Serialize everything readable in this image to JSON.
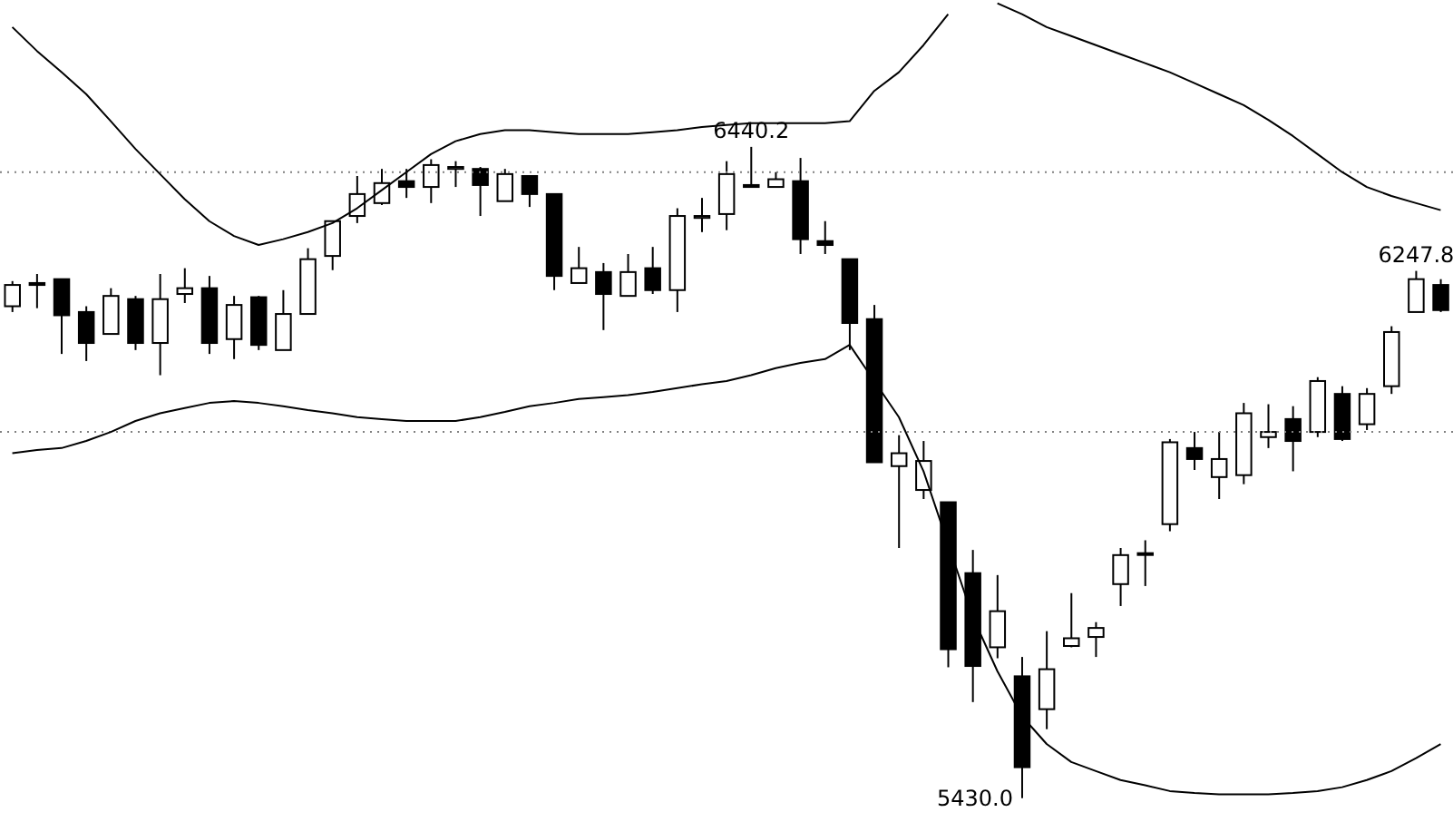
{
  "chart_data": {
    "type": "candlestick",
    "categories": [
      null,
      null,
      null,
      null,
      null,
      null,
      null,
      null,
      null,
      null,
      null,
      null,
      null,
      null,
      null,
      null,
      null,
      null,
      null,
      null,
      null,
      null,
      null,
      null,
      null,
      null,
      null,
      null,
      null,
      null,
      null,
      null,
      null,
      null,
      null,
      null,
      null,
      null,
      null,
      null,
      null,
      null,
      null,
      null,
      null,
      null,
      null,
      null,
      null,
      null,
      null,
      null,
      null,
      null,
      null,
      null,
      null,
      null,
      null
    ],
    "ohlc": [
      [
        6193,
        6232,
        6184,
        6226
      ],
      [
        6229,
        6243,
        6190,
        6226
      ],
      [
        6235,
        6235,
        6119,
        6179
      ],
      [
        6184,
        6193,
        6108,
        6136
      ],
      [
        6150,
        6221,
        6150,
        6209
      ],
      [
        6204,
        6209,
        6125,
        6136
      ],
      [
        6136,
        6243,
        6086,
        6204
      ],
      [
        6212,
        6252,
        6198,
        6221
      ],
      [
        6221,
        6240,
        6119,
        6136
      ],
      [
        6142,
        6209,
        6111,
        6195
      ],
      [
        6207,
        6209,
        6125,
        6133
      ],
      [
        6125,
        6218,
        6125,
        6181
      ],
      [
        6181,
        6283,
        6181,
        6266
      ],
      [
        6271,
        6325,
        6249,
        6325
      ],
      [
        6333,
        6395,
        6322,
        6367
      ],
      [
        6353,
        6406,
        6350,
        6384
      ],
      [
        6387,
        6406,
        6361,
        6378
      ],
      [
        6378,
        6421,
        6353,
        6412
      ],
      [
        6406,
        6418,
        6378,
        6409
      ],
      [
        6406,
        6409,
        6333,
        6381
      ],
      [
        6356,
        6406,
        6356,
        6398
      ],
      [
        6395,
        6395,
        6347,
        6367
      ],
      [
        6367,
        6367,
        6218,
        6240
      ],
      [
        6229,
        6285,
        6229,
        6252
      ],
      [
        6246,
        6260,
        6156,
        6212
      ],
      [
        6209,
        6274,
        6209,
        6246
      ],
      [
        6252,
        6285,
        6212,
        6218
      ],
      [
        6218,
        6345,
        6184,
        6333
      ],
      [
        6330,
        6361,
        6308,
        6333
      ],
      [
        6336,
        6418,
        6311,
        6398
      ],
      [
        6381,
        6440.2,
        6378,
        6378
      ],
      [
        6378,
        6401,
        6378,
        6390
      ],
      [
        6387,
        6423,
        6274,
        6297
      ],
      [
        6294,
        6325,
        6274,
        6288
      ],
      [
        6266,
        6266,
        6125,
        6167
      ],
      [
        6173,
        6195,
        5951,
        5951
      ],
      [
        5945,
        5993,
        5818,
        5965
      ],
      [
        5908,
        5984,
        5894,
        5953
      ],
      [
        5889,
        5889,
        5633,
        5661
      ],
      [
        5779,
        5815,
        5579,
        5635
      ],
      [
        5664,
        5776,
        5647,
        5720
      ],
      [
        5619,
        5649,
        5430.0,
        5478
      ],
      [
        5568,
        5689,
        5537,
        5630
      ],
      [
        5666,
        5748,
        5664,
        5678
      ],
      [
        5680,
        5703,
        5649,
        5694
      ],
      [
        5762,
        5818,
        5728,
        5807
      ],
      [
        5810,
        5830,
        5759,
        5810
      ],
      [
        5855,
        5987,
        5844,
        5982
      ],
      [
        5973,
        5998,
        5939,
        5956
      ],
      [
        5928,
        5998,
        5894,
        5956
      ],
      [
        5931,
        6043,
        5917,
        6027
      ],
      [
        5990,
        6041,
        5973,
        5998
      ],
      [
        6018,
        6038,
        5937,
        5984
      ],
      [
        5998,
        6083,
        5990,
        6077
      ],
      [
        6057,
        6069,
        5984,
        5987
      ],
      [
        6010,
        6066,
        6001,
        6057
      ],
      [
        6069,
        6162,
        6057,
        6153
      ],
      [
        6184,
        6247.8,
        6184,
        6235
      ],
      [
        6226,
        6235,
        6184,
        6187
      ]
    ],
    "series": [
      {
        "type": "line",
        "color": "#000000",
        "values": [
          6626,
          6589,
          6556,
          6522,
          6480,
          6437,
          6398,
          6359,
          6325,
          6302,
          6288,
          6297,
          6308,
          6322,
          6345,
          6373,
          6401,
          6429,
          6449,
          6460,
          6466,
          6466,
          6463,
          6460,
          6460,
          6460,
          6463,
          6466,
          6471,
          6474,
          6477,
          6477,
          6477,
          6477,
          6480,
          6527,
          6556,
          6598,
          6646,
          null,
          6663,
          6646,
          6626,
          6612,
          6598,
          6584,
          6570,
          6556,
          6539,
          6522,
          6505,
          6482,
          6457,
          6429,
          6401,
          6378,
          6364,
          6353,
          6342
        ]
      },
      {
        "type": "line",
        "color": "#000000",
        "values": [
          5965,
          5970,
          5973,
          5984,
          5998,
          6015,
          6027,
          6035,
          6043,
          6046,
          6043,
          6038,
          6032,
          6027,
          6021,
          6018,
          6015,
          6015,
          6015,
          6021,
          6029,
          6038,
          6043,
          6049,
          6052,
          6055,
          6060,
          6066,
          6072,
          6077,
          6086,
          6097,
          6105,
          6111,
          6133,
          6077,
          6021,
          5937,
          5824,
          5711,
          5627,
          5557,
          5514,
          5486,
          5472,
          5458,
          5450,
          5441,
          5438,
          5436,
          5436,
          5436,
          5438,
          5441,
          5447,
          5458,
          5472,
          5492,
          5514
        ]
      }
    ],
    "ylim": [
      5393,
      6668
    ],
    "tick_labels": false,
    "grid": false,
    "ref_lines": [
      {
        "axis": "y",
        "value": 6401,
        "color": "#808080",
        "line_style": "dotted"
      },
      {
        "axis": "y",
        "value": 5998,
        "color": "#808080",
        "line_style": "dotted"
      }
    ],
    "annotations": [
      {
        "text": "6440.2",
        "y": 6440.2
      },
      "5430.0",
      {
        "text": "6247.8",
        "y": 6247.8
      }
    ]
  }
}
